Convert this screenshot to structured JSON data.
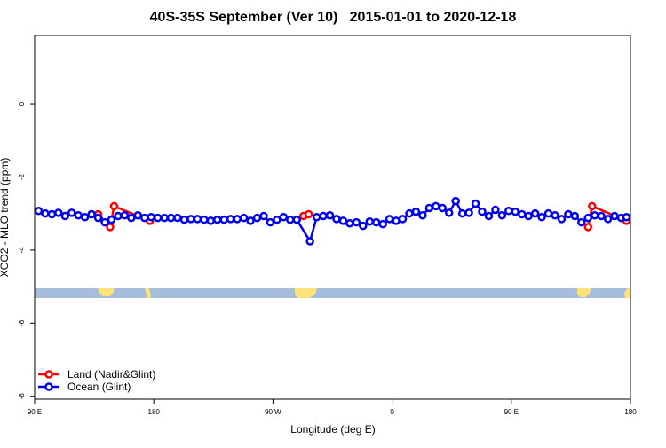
{
  "chart_data": {
    "type": "line",
    "title": "40S-35S September (Ver 10)   2015-01-01 to 2020-12-18",
    "x_label": "Longitude (deg E)",
    "y_label": "XCO2 - MLO trend (ppm)",
    "xlim": [
      90,
      540
    ],
    "xticks": [
      {
        "value": 90,
        "label": "90 E"
      },
      {
        "value": 180,
        "label": "180"
      },
      {
        "value": 270,
        "label": "90 W"
      },
      {
        "value": 360,
        "label": "0"
      },
      {
        "value": 450,
        "label": "90 E"
      },
      {
        "value": 540,
        "label": "180"
      }
    ],
    "ylim": [
      -8.08,
      1.87
    ],
    "yticks": [
      0,
      -2,
      -4,
      -6,
      -8
    ],
    "legend": "bottom-left",
    "series": [
      {
        "name": "Land (Nadir&Glint)",
        "color": "#ff0000",
        "x": [
          138,
          147,
          150,
          177,
          287,
          293,
          297,
          499,
          508,
          511,
          537
        ],
        "values": [
          -3.02,
          -3.37,
          -2.8,
          -3.2,
          null,
          -3.07,
          -3.02,
          null,
          -3.37,
          -2.8,
          -3.2
        ]
      },
      {
        "name": "Ocean (Glint)",
        "color": "#0000ee",
        "x": [
          93,
          98,
          103,
          108,
          113,
          118,
          123,
          128,
          133,
          138,
          143,
          148,
          153,
          158,
          163,
          168,
          173,
          178,
          183,
          188,
          193,
          198,
          203,
          208,
          213,
          218,
          223,
          228,
          233,
          238,
          243,
          248,
          253,
          258,
          263,
          268,
          273,
          278,
          283,
          288,
          298,
          303,
          308,
          313,
          318,
          323,
          328,
          333,
          338,
          343,
          348,
          353,
          358,
          363,
          368,
          373,
          378,
          383,
          388,
          393,
          398,
          403,
          408,
          413,
          418,
          423,
          428,
          433,
          438,
          443,
          448,
          453,
          458,
          463,
          468,
          473,
          478,
          483,
          488,
          493,
          498,
          503,
          508,
          513,
          518,
          523,
          528,
          533,
          537
        ],
        "values": [
          -2.93,
          -3.0,
          -3.02,
          -2.98,
          -3.07,
          -2.98,
          -3.05,
          -3.1,
          -3.02,
          -3.12,
          -3.24,
          -3.17,
          -3.07,
          -3.05,
          -3.12,
          -3.05,
          -3.12,
          -3.1,
          -3.12,
          -3.12,
          -3.12,
          -3.12,
          -3.17,
          -3.15,
          -3.15,
          -3.17,
          -3.2,
          -3.17,
          -3.17,
          -3.15,
          -3.15,
          -3.12,
          -3.2,
          -3.12,
          -3.07,
          -3.24,
          -3.17,
          -3.1,
          -3.17,
          -3.17,
          -3.76,
          -3.1,
          -3.07,
          -3.05,
          -3.15,
          -3.2,
          -3.27,
          -3.24,
          -3.34,
          -3.22,
          -3.24,
          -3.29,
          -3.15,
          -3.2,
          -3.15,
          -3.0,
          -2.95,
          -3.05,
          -2.85,
          -2.8,
          -2.85,
          -2.98,
          -2.66,
          -3.0,
          -2.98,
          -2.73,
          -2.95,
          -3.07,
          -2.9,
          -3.05,
          -2.93,
          -2.95,
          -3.02,
          -3.07,
          -3.0,
          -3.1,
          -3.0,
          -3.05,
          -3.15,
          -3.02,
          -3.07,
          -3.24,
          -3.12,
          -3.05,
          -3.07,
          -3.15,
          -3.07,
          -3.12,
          -3.1
        ]
      }
    ]
  }
}
